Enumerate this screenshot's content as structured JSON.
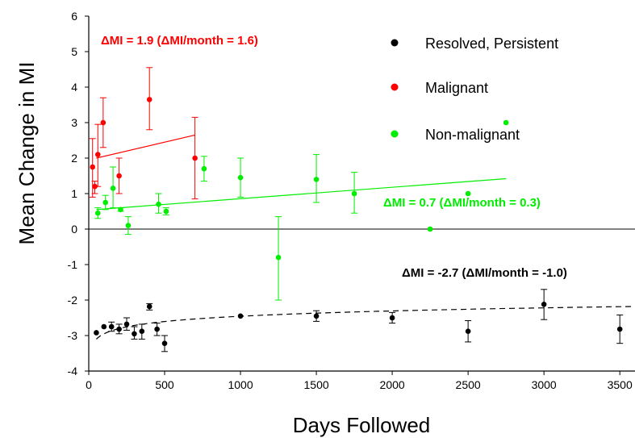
{
  "chart_data": {
    "type": "scatter",
    "xlabel": "Days Followed",
    "ylabel": "Mean Change in MI",
    "xlim": [
      0,
      3600
    ],
    "ylim": [
      -4,
      6
    ],
    "xticks": [
      0,
      500,
      1000,
      1500,
      2000,
      2500,
      3000,
      3500
    ],
    "yticks": [
      -4,
      -3,
      -2,
      -1,
      0,
      1,
      2,
      3,
      4,
      5,
      6
    ],
    "grid": false,
    "legend_position": "top-right",
    "series": [
      {
        "name": "Resolved, Persistent",
        "color": "#000000",
        "points": [
          {
            "x": 50,
            "y": -2.92,
            "lo": -2.92,
            "hi": -2.92
          },
          {
            "x": 100,
            "y": -2.75,
            "lo": -2.75,
            "hi": -2.75
          },
          {
            "x": 150,
            "y": -2.75,
            "lo": -2.88,
            "hi": -2.62
          },
          {
            "x": 200,
            "y": -2.82,
            "lo": -2.95,
            "hi": -2.68
          },
          {
            "x": 250,
            "y": -2.68,
            "lo": -2.85,
            "hi": -2.5
          },
          {
            "x": 300,
            "y": -2.95,
            "lo": -3.1,
            "hi": -2.75
          },
          {
            "x": 350,
            "y": -2.88,
            "lo": -3.1,
            "hi": -2.68
          },
          {
            "x": 400,
            "y": -2.18,
            "lo": -2.28,
            "hi": -2.1
          },
          {
            "x": 450,
            "y": -2.82,
            "lo": -3.0,
            "hi": -2.65
          },
          {
            "x": 500,
            "y": -3.22,
            "lo": -3.45,
            "hi": -3.0
          },
          {
            "x": 1000,
            "y": -2.45,
            "lo": -2.45,
            "hi": -2.45
          },
          {
            "x": 1500,
            "y": -2.45,
            "lo": -2.6,
            "hi": -2.3
          },
          {
            "x": 2000,
            "y": -2.5,
            "lo": -2.65,
            "hi": -2.35
          },
          {
            "x": 2500,
            "y": -2.88,
            "lo": -3.18,
            "hi": -2.58
          },
          {
            "x": 3000,
            "y": -2.12,
            "lo": -2.55,
            "hi": -1.7
          },
          {
            "x": 3500,
            "y": -2.82,
            "lo": -3.22,
            "hi": -2.42
          }
        ],
        "trend": {
          "style": "dashed",
          "shape": "log",
          "from": [
            50,
            -3.1
          ],
          "mid": [
            500,
            -2.75
          ],
          "to": [
            3600,
            -2.18
          ]
        }
      },
      {
        "name": "Malignant",
        "color": "#ff0000",
        "points": [
          {
            "x": 25,
            "y": 1.75,
            "lo": 0.9,
            "hi": 2.55
          },
          {
            "x": 40,
            "y": 1.2,
            "lo": 1.0,
            "hi": 1.35
          },
          {
            "x": 60,
            "y": 2.1,
            "lo": 1.2,
            "hi": 2.95
          },
          {
            "x": 95,
            "y": 3.0,
            "lo": 2.3,
            "hi": 3.7
          },
          {
            "x": 200,
            "y": 1.5,
            "lo": 1.0,
            "hi": 2.0
          },
          {
            "x": 400,
            "y": 3.65,
            "lo": 2.8,
            "hi": 4.55
          },
          {
            "x": 700,
            "y": 2.0,
            "lo": 0.85,
            "hi": 3.15
          }
        ],
        "trend": {
          "style": "solid",
          "shape": "linear",
          "from": [
            50,
            2.0
          ],
          "to": [
            700,
            2.65
          ]
        }
      },
      {
        "name": "Non-malignant",
        "color": "#00ee00",
        "points": [
          {
            "x": 60,
            "y": 0.45,
            "lo": 0.3,
            "hi": 0.6
          },
          {
            "x": 110,
            "y": 0.75,
            "lo": 0.55,
            "hi": 0.95
          },
          {
            "x": 160,
            "y": 1.15,
            "lo": 0.6,
            "hi": 1.75
          },
          {
            "x": 210,
            "y": 0.55,
            "lo": 0.5,
            "hi": 0.6
          },
          {
            "x": 260,
            "y": 0.1,
            "lo": -0.15,
            "hi": 0.35
          },
          {
            "x": 460,
            "y": 0.7,
            "lo": 0.45,
            "hi": 1.0
          },
          {
            "x": 510,
            "y": 0.5,
            "lo": 0.4,
            "hi": 0.6
          },
          {
            "x": 760,
            "y": 1.7,
            "lo": 1.35,
            "hi": 2.05
          },
          {
            "x": 1000,
            "y": 1.45,
            "lo": 0.9,
            "hi": 2.0
          },
          {
            "x": 1250,
            "y": -0.8,
            "lo": -2.0,
            "hi": 0.35
          },
          {
            "x": 1500,
            "y": 1.4,
            "lo": 0.75,
            "hi": 2.1
          },
          {
            "x": 1750,
            "y": 1.0,
            "lo": 0.45,
            "hi": 1.6
          },
          {
            "x": 2250,
            "y": 0.0,
            "lo": 0.0,
            "hi": 0.0
          },
          {
            "x": 2500,
            "y": 1.0,
            "lo": 1.0,
            "hi": 1.0
          },
          {
            "x": 2750,
            "y": 3.0,
            "lo": 3.0,
            "hi": 3.0
          }
        ],
        "trend": {
          "style": "solid",
          "shape": "linear",
          "from": [
            50,
            0.55
          ],
          "to": [
            2750,
            1.42
          ]
        }
      }
    ],
    "annotations": [
      {
        "text": "ΔMI = 1.9 (ΔMI/month = 1.6)",
        "color": "#ff0000"
      },
      {
        "text": "ΔMI = 0.7 (ΔMI/month = 0.3)",
        "color": "#00ee00"
      },
      {
        "text": "ΔMI = -2.7 (ΔMI/month = -1.0)",
        "color": "#000000"
      }
    ]
  }
}
